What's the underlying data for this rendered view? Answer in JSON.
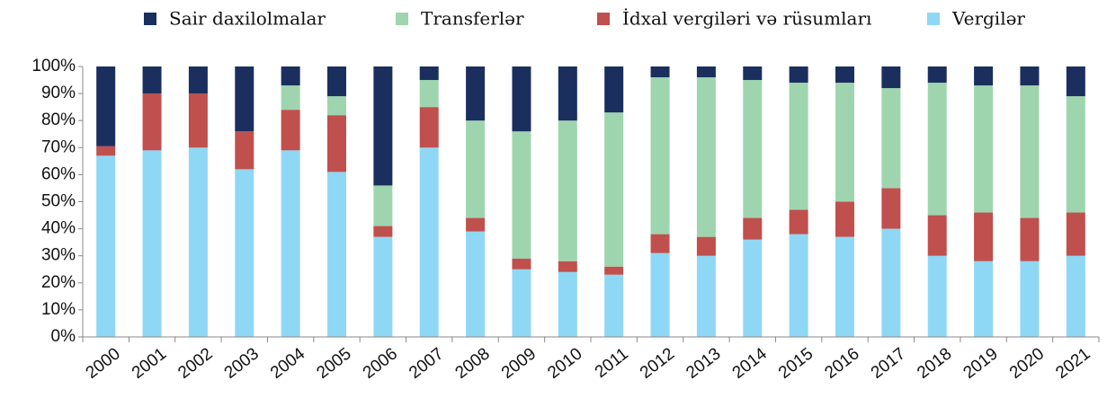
{
  "chart_data": {
    "type": "stacked_bar_100",
    "categories": [
      "2000",
      "2001",
      "2002",
      "2003",
      "2004",
      "2005",
      "2006",
      "2007",
      "2008",
      "2009",
      "2010",
      "2011",
      "2012",
      "2013",
      "2014",
      "2015",
      "2016",
      "2017",
      "2018",
      "2019",
      "2020",
      "2021"
    ],
    "series": [
      {
        "name": "Sair daxilolmalar",
        "color": "#1b2f5f",
        "values": [
          29.5,
          10,
          10,
          24,
          7,
          11,
          44,
          5,
          20,
          24,
          20,
          17,
          4,
          4,
          5,
          6,
          6,
          8,
          6,
          7,
          7,
          11
        ]
      },
      {
        "name": "Transferlər",
        "color": "#9fd5ae",
        "values": [
          0,
          0,
          0,
          0,
          9,
          7,
          15,
          10,
          36,
          47,
          52,
          57,
          58,
          59,
          51,
          47,
          44,
          37,
          49,
          47,
          49,
          43
        ]
      },
      {
        "name": "İdxal vergiləri və rüsumları",
        "color": "#c0504d",
        "values": [
          3.5,
          21,
          20,
          14,
          15,
          21,
          4,
          15,
          5,
          4,
          4,
          3,
          7,
          7,
          8,
          9,
          13,
          15,
          15,
          18,
          16,
          16
        ]
      },
      {
        "name": "Vergilər",
        "color": "#8fd8f5",
        "values": [
          67,
          69,
          70,
          62,
          69,
          61,
          37,
          70,
          39,
          25,
          24,
          23,
          31,
          30,
          36,
          38,
          37,
          40,
          30,
          28,
          28,
          30
        ]
      }
    ],
    "ylim": [
      0,
      100
    ],
    "yticks": [
      {
        "value": 0,
        "label": "0%"
      },
      {
        "value": 10,
        "label": "10%"
      },
      {
        "value": 20,
        "label": "20%"
      },
      {
        "value": 30,
        "label": "30%"
      },
      {
        "value": 40,
        "label": "40%"
      },
      {
        "value": 50,
        "label": "50%"
      },
      {
        "value": 60,
        "label": "60%"
      },
      {
        "value": 70,
        "label": "70%"
      },
      {
        "value": 80,
        "label": "80%"
      },
      {
        "value": 90,
        "label": "90%"
      },
      {
        "value": 100,
        "label": "100%"
      }
    ],
    "legend": "top",
    "grid": false
  }
}
